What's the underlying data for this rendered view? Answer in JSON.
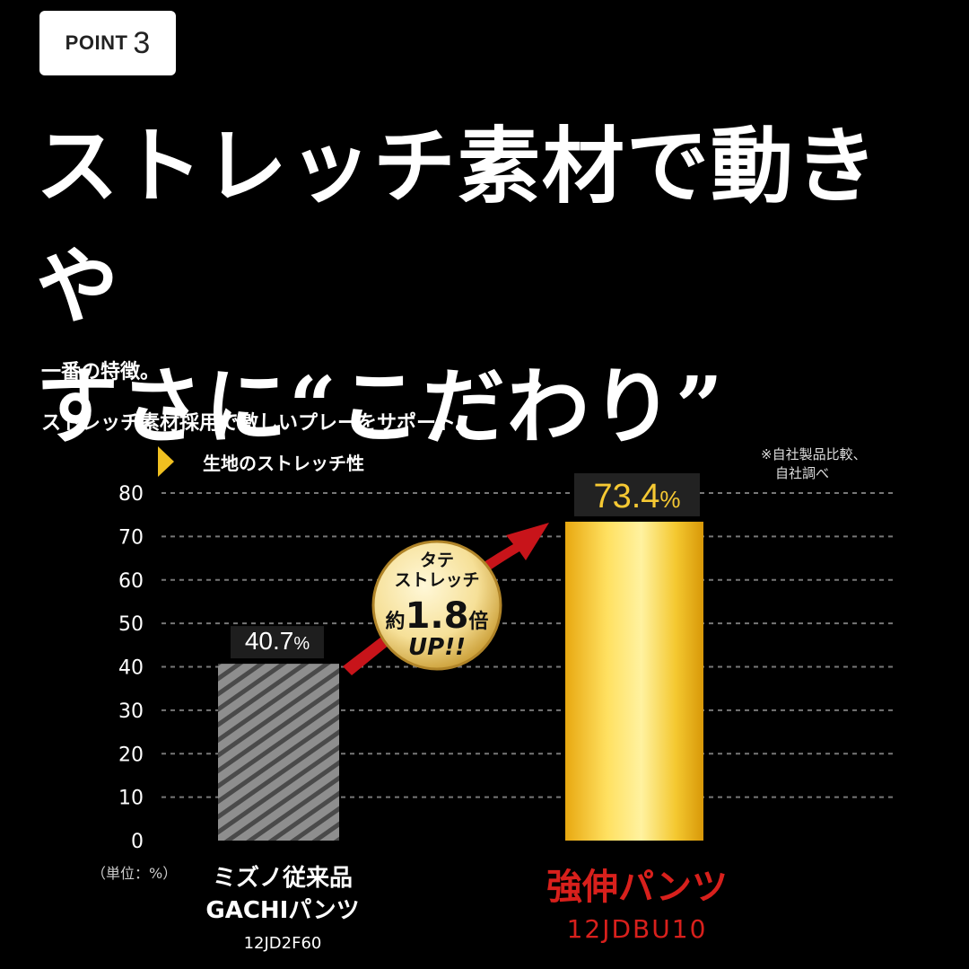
{
  "badge": {
    "word": "POINT",
    "number": "3"
  },
  "headline": {
    "line1": "ストレッチ素材で動きや",
    "line2": "すさに“こだわり”"
  },
  "lead": {
    "line1": "一番の特徴。",
    "line2": "ストレッチ素材採用で激しいプレーをサポート。"
  },
  "note": {
    "line1": "※自社製品比較、",
    "line2": "自社調べ"
  },
  "callout": {
    "line1": "タテ",
    "line2": "ストレッチ",
    "prefix": "約",
    "multiplier": "1.8",
    "suffix": "倍",
    "up": "UP!!"
  },
  "colors": {
    "accent_gold": "#f0c020",
    "accent_red": "#d8201c",
    "gray_bar": "#8a8a8a"
  },
  "chart_data": {
    "type": "bar",
    "ylabel": "生地のストレッチ性",
    "unit_label": "（単位：%）",
    "ylim": [
      0,
      80
    ],
    "y_ticks": [
      "0",
      "10",
      "20",
      "30",
      "40",
      "50",
      "60",
      "70",
      "80"
    ],
    "grid": true,
    "categories": [
      {
        "name_line1": "ミズノ従来品",
        "name_line2": "GACHIパンツ",
        "code": "12JD2F60",
        "value": 40.7,
        "value_label": "40.7",
        "pct": "%"
      },
      {
        "name_line1": "強伸パンツ",
        "code": "12JDBU10",
        "value": 73.4,
        "value_label": "73.4",
        "pct": "%"
      }
    ]
  }
}
